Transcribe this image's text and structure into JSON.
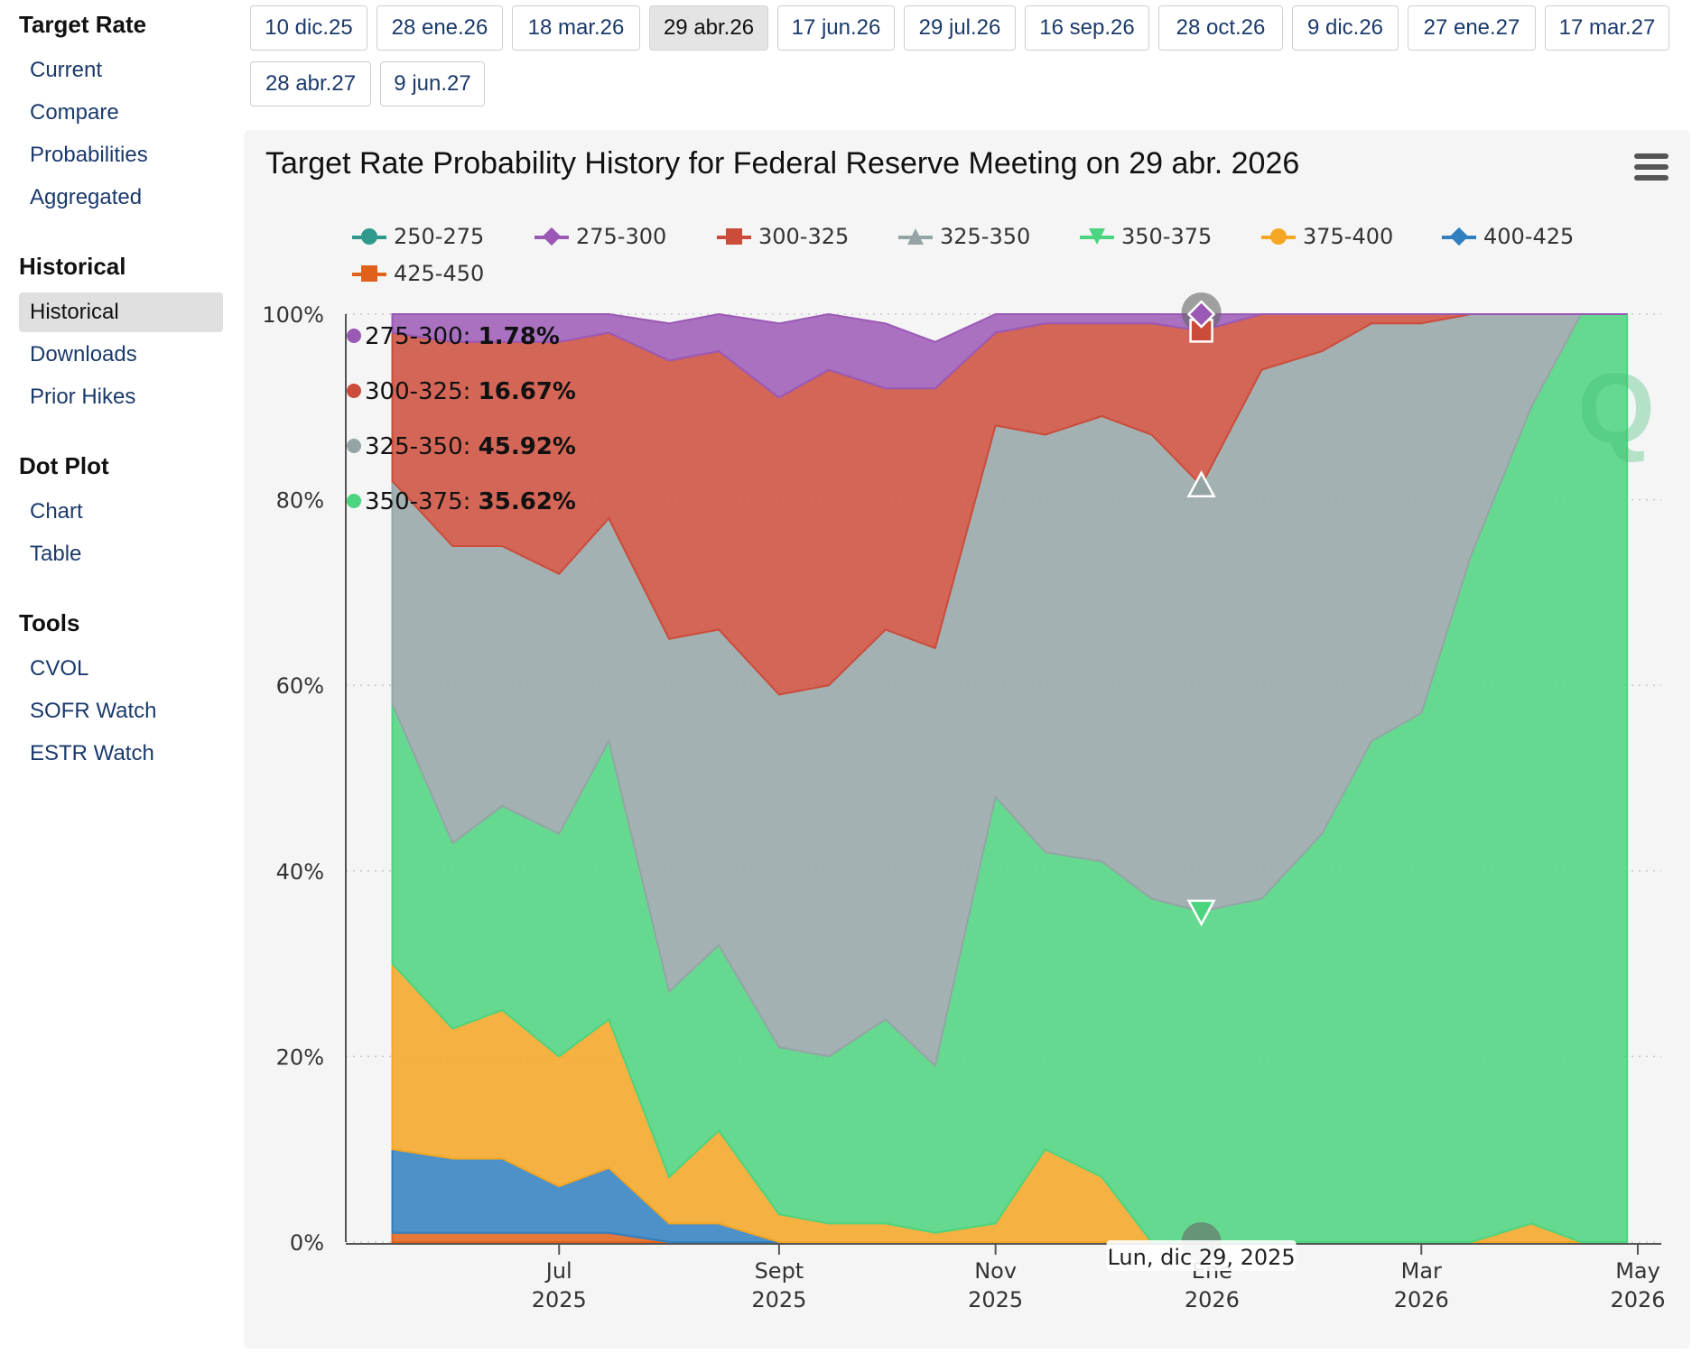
{
  "sidebar": {
    "sections": [
      {
        "title": "Target Rate",
        "items": [
          "Current",
          "Compare",
          "Probabilities",
          "Aggregated"
        ]
      },
      {
        "title": "Historical",
        "items": [
          "Historical",
          "Downloads",
          "Prior Hikes"
        ]
      },
      {
        "title": "Dot Plot",
        "items": [
          "Chart",
          "Table"
        ]
      },
      {
        "title": "Tools",
        "items": [
          "CVOL",
          "SOFR Watch",
          "ESTR Watch"
        ]
      }
    ],
    "active_item": "Historical"
  },
  "meeting_tabs": [
    "10 dic.25",
    "28 ene.26",
    "18 mar.26",
    "29 abr.26",
    "17 jun.26",
    "29 jul.26",
    "16 sep.26",
    "28 oct.26",
    "9 dic.26",
    "27 ene.27",
    "17 mar.27",
    "28 abr.27",
    "9 jun.27"
  ],
  "active_tab": "29 abr.26",
  "chart": {
    "title": "Target Rate Probability History for Federal Reserve Meeting on 29 abr. 2026",
    "menu_icon": "hamburger-menu-icon",
    "watermark_icon": "q-logo-icon"
  },
  "chart_data": {
    "type": "area",
    "stacked": true,
    "x_unit": "date",
    "x": [
      "2025-05-15",
      "2025-06-01",
      "2025-06-15",
      "2025-07-01",
      "2025-07-15",
      "2025-08-01",
      "2025-08-15",
      "2025-09-01",
      "2025-09-15",
      "2025-10-01",
      "2025-10-15",
      "2025-11-01",
      "2025-11-15",
      "2025-12-01",
      "2025-12-15",
      "2025-12-29",
      "2026-01-15",
      "2026-02-01",
      "2026-02-15",
      "2026-03-01",
      "2026-03-15",
      "2026-04-01",
      "2026-04-15",
      "2026-04-28"
    ],
    "series": [
      {
        "name": "250-275",
        "color": "#2f9a8c",
        "marker": "circle",
        "values": [
          0,
          0,
          0,
          0,
          0,
          0,
          0,
          0,
          0,
          0,
          0,
          0,
          0,
          0,
          0,
          0,
          0,
          0,
          0,
          0,
          0,
          0,
          0,
          0
        ]
      },
      {
        "name": "275-300",
        "color": "#9b59b6",
        "marker": "diamond",
        "values": [
          2,
          3,
          3,
          3,
          2,
          4,
          4,
          8,
          6,
          7,
          5,
          2,
          1,
          1,
          1,
          1.78,
          0,
          0,
          0,
          0,
          0,
          0,
          0,
          0
        ]
      },
      {
        "name": "300-325",
        "color": "#cc4c3b",
        "marker": "square",
        "values": [
          16,
          22,
          22,
          25,
          20,
          30,
          30,
          32,
          34,
          26,
          28,
          10,
          12,
          10,
          12,
          16.67,
          6,
          4,
          1,
          1,
          0,
          0,
          0,
          0
        ]
      },
      {
        "name": "325-350",
        "color": "#95a5a6",
        "marker": "triangle",
        "values": [
          24,
          32,
          28,
          28,
          24,
          38,
          34,
          38,
          40,
          42,
          45,
          40,
          45,
          48,
          50,
          45.92,
          57,
          52,
          45,
          42,
          26,
          10,
          0,
          0
        ]
      },
      {
        "name": "350-375",
        "color": "#4cd47e",
        "marker": "triangle-down",
        "values": [
          28,
          20,
          22,
          24,
          30,
          20,
          20,
          18,
          18,
          22,
          18,
          46,
          32,
          34,
          37,
          35.62,
          37,
          44,
          54,
          57,
          74,
          88,
          100,
          100
        ]
      },
      {
        "name": "375-400",
        "color": "#f5a623",
        "marker": "circle",
        "values": [
          20,
          14,
          16,
          14,
          16,
          5,
          10,
          3,
          2,
          2,
          1,
          2,
          10,
          7,
          0,
          0,
          0,
          0,
          0,
          0,
          0,
          2,
          0,
          0
        ]
      },
      {
        "name": "400-425",
        "color": "#2f7fc1",
        "marker": "diamond",
        "values": [
          9,
          8,
          8,
          5,
          7,
          2,
          2,
          0,
          0,
          0,
          0,
          0,
          0,
          0,
          0,
          0,
          0,
          0,
          0,
          0,
          0,
          0,
          0,
          0
        ]
      },
      {
        "name": "425-450",
        "color": "#e0621a",
        "marker": "square",
        "values": [
          1,
          1,
          1,
          1,
          1,
          0,
          0,
          0,
          0,
          0,
          0,
          0,
          0,
          0,
          0,
          0,
          0,
          0,
          0,
          0,
          0,
          0,
          0,
          0
        ]
      }
    ],
    "ylim": [
      0,
      100
    ],
    "y_ticks": [
      "0%",
      "20%",
      "40%",
      "60%",
      "80%",
      "100%"
    ],
    "x_ticks": [
      {
        "date": "2025-07-01",
        "label": [
          "Jul",
          "2025"
        ]
      },
      {
        "date": "2025-09-01",
        "label": [
          "Sept",
          "2025"
        ]
      },
      {
        "date": "2025-11-01",
        "label": [
          "Nov",
          "2025"
        ]
      },
      {
        "date": "2026-01-01",
        "label": [
          "Ene",
          "2026"
        ]
      },
      {
        "date": "2026-03-01",
        "label": [
          "Mar",
          "2026"
        ]
      },
      {
        "date": "2026-05-01",
        "label": [
          "May",
          "2026"
        ]
      }
    ],
    "legend_placement": "top",
    "grid": "dotted horizontal",
    "hover": {
      "date": "2025-12-29",
      "date_label": "Lun, dic 29, 2025",
      "entries": [
        {
          "name": "275-300",
          "value": "1.78%",
          "color": "#9b59b6"
        },
        {
          "name": "300-325",
          "value": "16.67%",
          "color": "#cc4c3b"
        },
        {
          "name": "325-350",
          "value": "45.92%",
          "color": "#95a5a6"
        },
        {
          "name": "350-375",
          "value": "35.62%",
          "color": "#4cd47e"
        }
      ]
    }
  }
}
